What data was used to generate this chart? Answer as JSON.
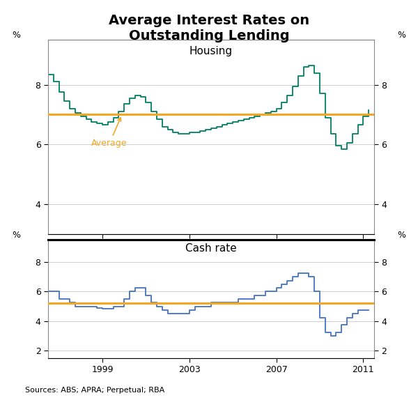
{
  "title": "Average Interest Rates on\nOutstanding Lending",
  "title_fontsize": 14,
  "housing_label": "Housing",
  "cash_label": "Cash rate",
  "source_text": "Sources: ABS; APRA; Perpetual; RBA",
  "orange_color": "#F5A623",
  "green_color": "#008060",
  "blue_color": "#4472C4",
  "housing_average": 7.0,
  "cash_average": 5.2,
  "housing_ylim": [
    3.0,
    9.5
  ],
  "cash_ylim": [
    1.5,
    9.5
  ],
  "housing_yticks": [
    4,
    6,
    8
  ],
  "cash_yticks": [
    2,
    4,
    6,
    8
  ],
  "x_start_year": 1996.5,
  "x_end_year": 2011.5,
  "x_ticks": [
    1999,
    2003,
    2007,
    2011
  ],
  "housing_data": [
    [
      1996.5,
      8.35
    ],
    [
      1996.75,
      8.1
    ],
    [
      1997.0,
      7.75
    ],
    [
      1997.25,
      7.45
    ],
    [
      1997.5,
      7.2
    ],
    [
      1997.75,
      7.05
    ],
    [
      1998.0,
      6.95
    ],
    [
      1998.25,
      6.85
    ],
    [
      1998.5,
      6.75
    ],
    [
      1998.75,
      6.7
    ],
    [
      1999.0,
      6.65
    ],
    [
      1999.25,
      6.75
    ],
    [
      1999.5,
      6.9
    ],
    [
      1999.75,
      7.1
    ],
    [
      2000.0,
      7.35
    ],
    [
      2000.25,
      7.55
    ],
    [
      2000.5,
      7.65
    ],
    [
      2000.75,
      7.6
    ],
    [
      2001.0,
      7.4
    ],
    [
      2001.25,
      7.1
    ],
    [
      2001.5,
      6.85
    ],
    [
      2001.75,
      6.6
    ],
    [
      2002.0,
      6.5
    ],
    [
      2002.25,
      6.4
    ],
    [
      2002.5,
      6.35
    ],
    [
      2002.75,
      6.35
    ],
    [
      2003.0,
      6.4
    ],
    [
      2003.25,
      6.4
    ],
    [
      2003.5,
      6.45
    ],
    [
      2003.75,
      6.5
    ],
    [
      2004.0,
      6.55
    ],
    [
      2004.25,
      6.6
    ],
    [
      2004.5,
      6.65
    ],
    [
      2004.75,
      6.7
    ],
    [
      2005.0,
      6.75
    ],
    [
      2005.25,
      6.8
    ],
    [
      2005.5,
      6.85
    ],
    [
      2005.75,
      6.9
    ],
    [
      2006.0,
      6.95
    ],
    [
      2006.25,
      7.0
    ],
    [
      2006.5,
      7.05
    ],
    [
      2006.75,
      7.1
    ],
    [
      2007.0,
      7.2
    ],
    [
      2007.25,
      7.4
    ],
    [
      2007.5,
      7.65
    ],
    [
      2007.75,
      7.95
    ],
    [
      2008.0,
      8.3
    ],
    [
      2008.25,
      8.6
    ],
    [
      2008.5,
      8.65
    ],
    [
      2008.75,
      8.4
    ],
    [
      2009.0,
      7.7
    ],
    [
      2009.25,
      6.9
    ],
    [
      2009.5,
      6.35
    ],
    [
      2009.75,
      5.95
    ],
    [
      2010.0,
      5.85
    ],
    [
      2010.25,
      6.05
    ],
    [
      2010.5,
      6.35
    ],
    [
      2010.75,
      6.65
    ],
    [
      2011.0,
      6.95
    ],
    [
      2011.25,
      7.15
    ]
  ],
  "cash_data": [
    [
      1996.5,
      6.0
    ],
    [
      1996.75,
      6.0
    ],
    [
      1997.0,
      5.5
    ],
    [
      1997.25,
      5.5
    ],
    [
      1997.5,
      5.25
    ],
    [
      1997.75,
      5.0
    ],
    [
      1998.0,
      5.0
    ],
    [
      1998.25,
      5.0
    ],
    [
      1998.5,
      5.0
    ],
    [
      1998.75,
      4.9
    ],
    [
      1999.0,
      4.85
    ],
    [
      1999.25,
      4.85
    ],
    [
      1999.5,
      5.0
    ],
    [
      1999.75,
      5.0
    ],
    [
      2000.0,
      5.5
    ],
    [
      2000.25,
      6.0
    ],
    [
      2000.5,
      6.25
    ],
    [
      2000.75,
      6.25
    ],
    [
      2001.0,
      5.75
    ],
    [
      2001.25,
      5.25
    ],
    [
      2001.5,
      5.0
    ],
    [
      2001.75,
      4.75
    ],
    [
      2002.0,
      4.5
    ],
    [
      2002.25,
      4.5
    ],
    [
      2002.5,
      4.5
    ],
    [
      2002.75,
      4.5
    ],
    [
      2003.0,
      4.75
    ],
    [
      2003.25,
      5.0
    ],
    [
      2003.5,
      5.0
    ],
    [
      2003.75,
      5.0
    ],
    [
      2004.0,
      5.25
    ],
    [
      2004.25,
      5.25
    ],
    [
      2004.5,
      5.25
    ],
    [
      2004.75,
      5.25
    ],
    [
      2005.0,
      5.25
    ],
    [
      2005.25,
      5.5
    ],
    [
      2005.5,
      5.5
    ],
    [
      2005.75,
      5.5
    ],
    [
      2006.0,
      5.75
    ],
    [
      2006.25,
      5.75
    ],
    [
      2006.5,
      6.0
    ],
    [
      2006.75,
      6.0
    ],
    [
      2007.0,
      6.25
    ],
    [
      2007.25,
      6.5
    ],
    [
      2007.5,
      6.75
    ],
    [
      2007.75,
      7.0
    ],
    [
      2008.0,
      7.25
    ],
    [
      2008.25,
      7.25
    ],
    [
      2008.5,
      7.0
    ],
    [
      2008.75,
      6.0
    ],
    [
      2009.0,
      4.25
    ],
    [
      2009.25,
      3.25
    ],
    [
      2009.5,
      3.0
    ],
    [
      2009.75,
      3.25
    ],
    [
      2010.0,
      3.75
    ],
    [
      2010.25,
      4.25
    ],
    [
      2010.5,
      4.5
    ],
    [
      2010.75,
      4.75
    ],
    [
      2011.0,
      4.75
    ],
    [
      2011.25,
      4.75
    ]
  ]
}
